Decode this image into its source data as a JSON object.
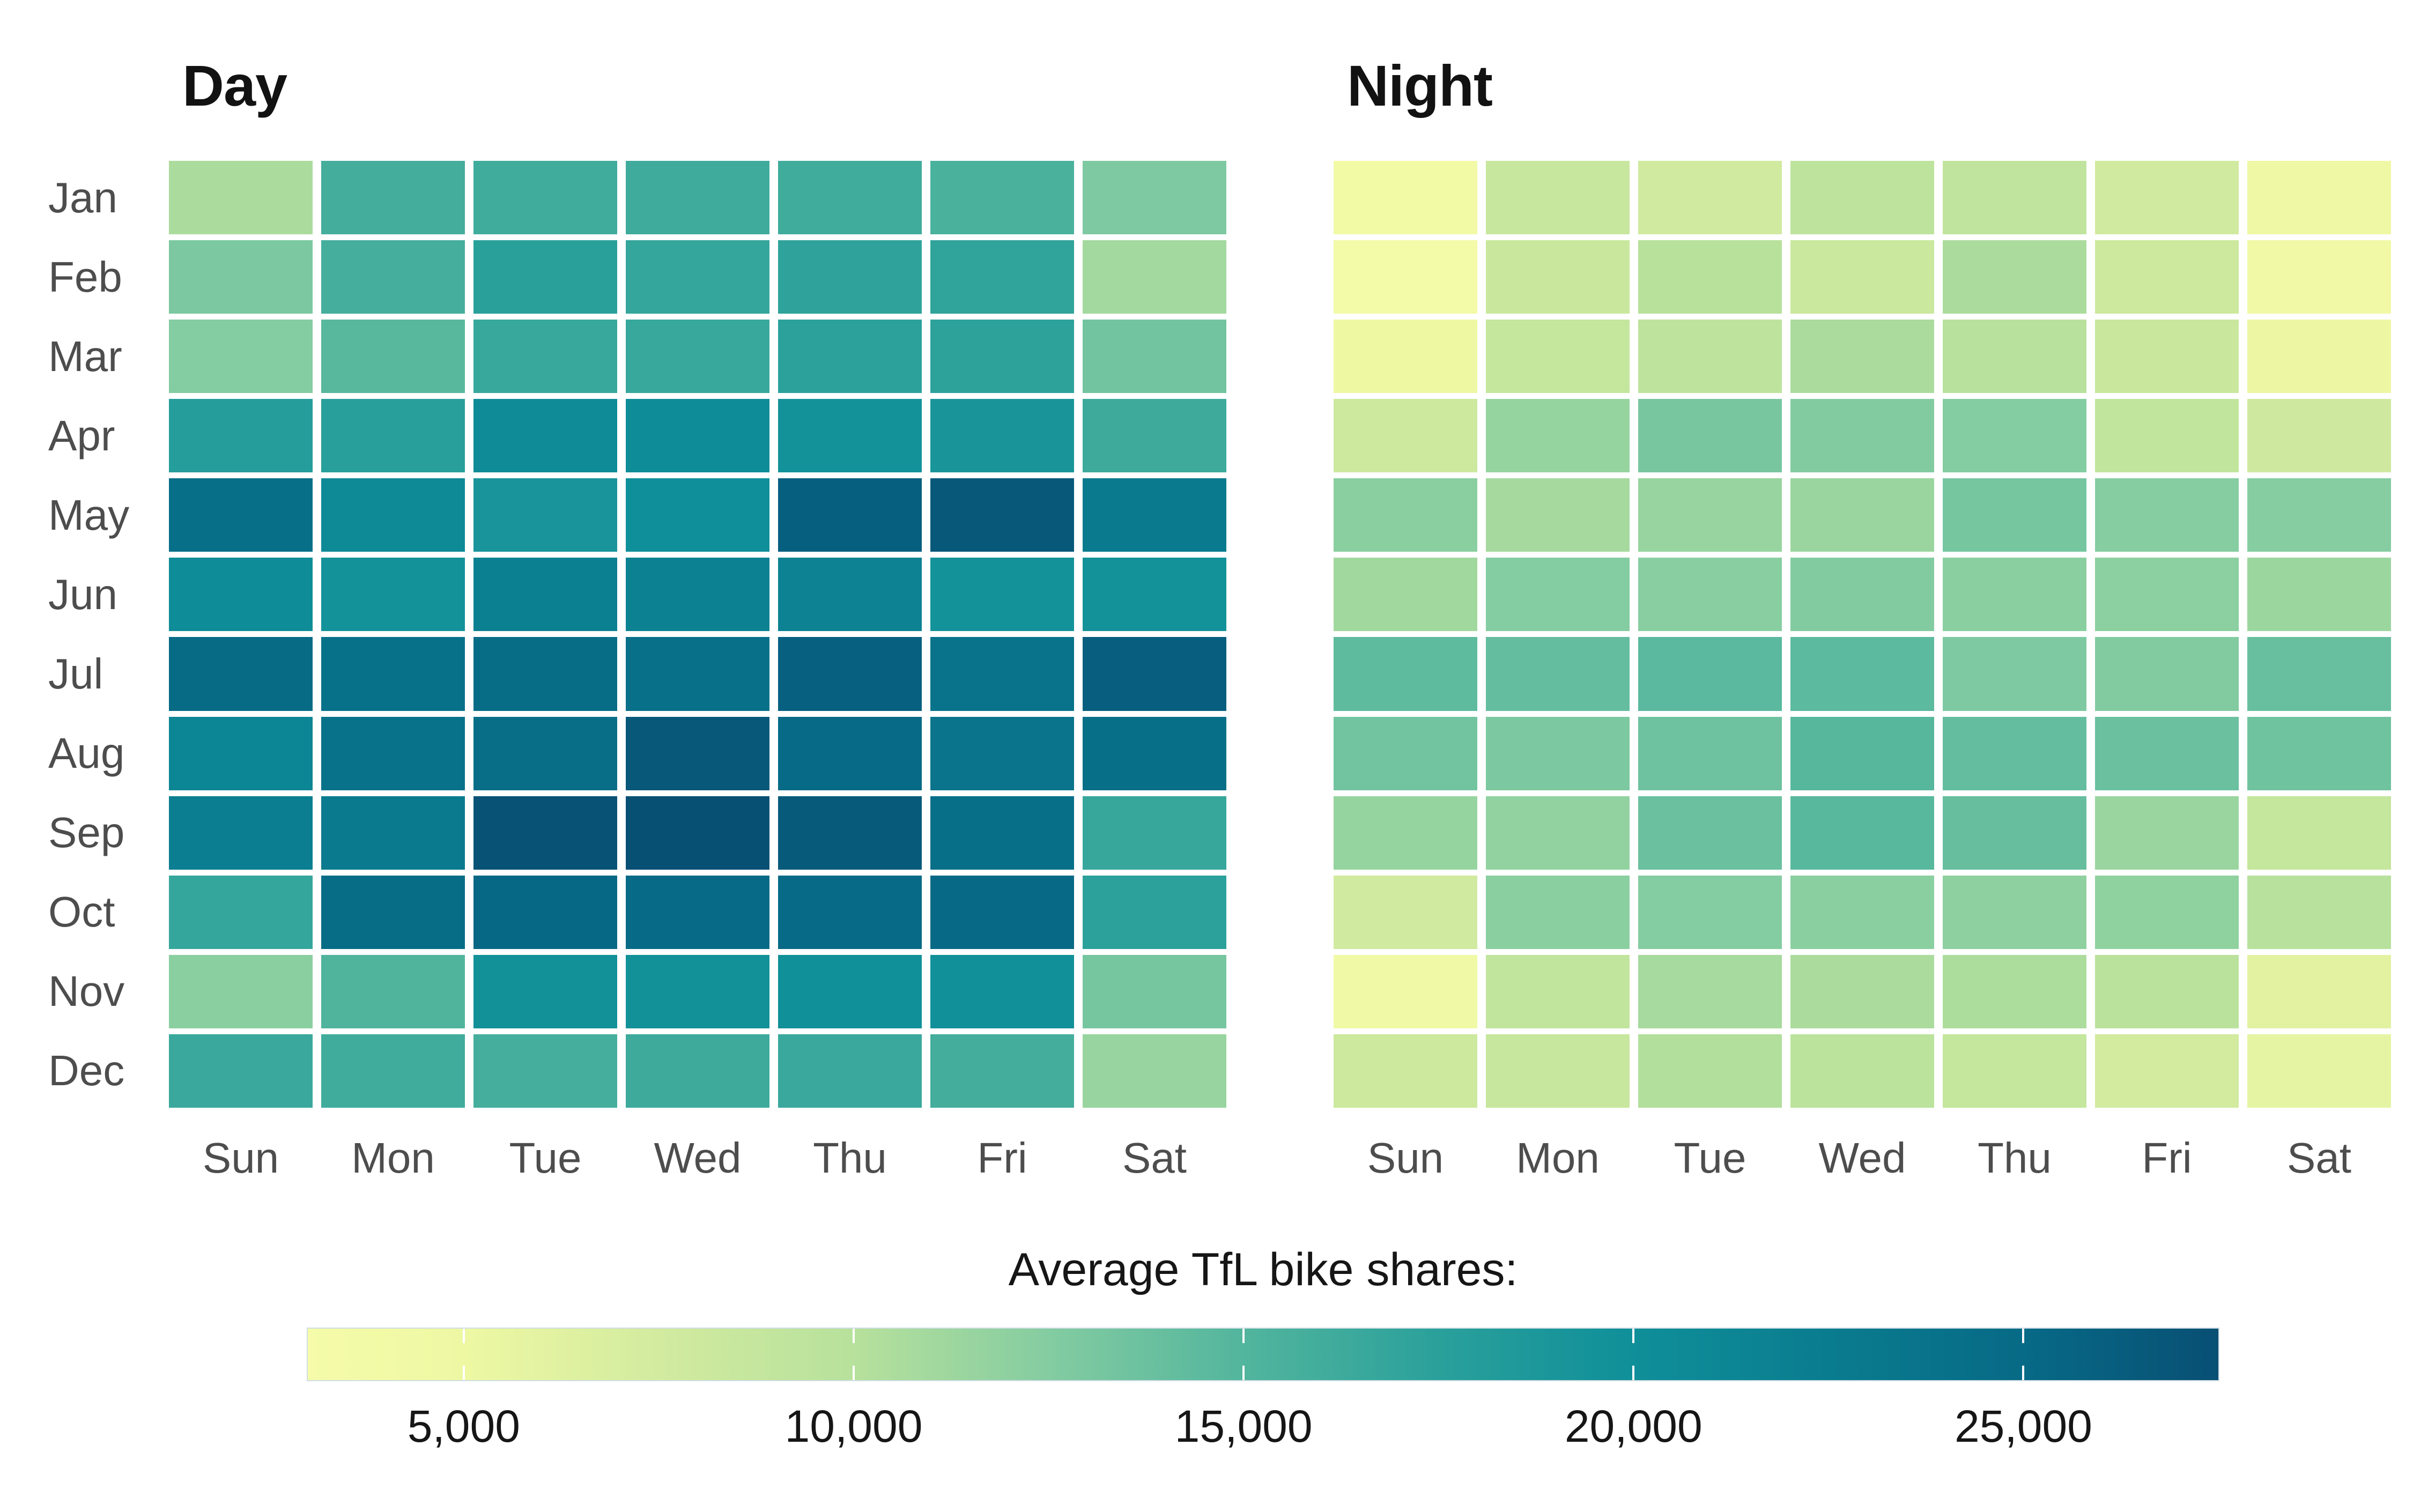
{
  "chart_data": {
    "type": "heatmap",
    "months": [
      "Jan",
      "Feb",
      "Mar",
      "Apr",
      "May",
      "Jun",
      "Jul",
      "Aug",
      "Sep",
      "Oct",
      "Nov",
      "Dec"
    ],
    "weekdays": [
      "Sun",
      "Mon",
      "Tue",
      "Wed",
      "Thu",
      "Fri",
      "Sat"
    ],
    "panels": [
      {
        "title": "Day",
        "values": [
          [
            10600,
            15900,
            16100,
            16200,
            16100,
            15500,
            12800
          ],
          [
            12900,
            15800,
            17500,
            16800,
            17200,
            17100,
            11000
          ],
          [
            12500,
            14700,
            16600,
            16600,
            17400,
            17300,
            13400
          ],
          [
            18000,
            17700,
            20500,
            20400,
            19600,
            19100,
            16300
          ],
          [
            24300,
            20700,
            19200,
            20000,
            26000,
            26700,
            22600
          ],
          [
            20300,
            19600,
            22000,
            21800,
            21700,
            19500,
            19500
          ],
          [
            24900,
            24000,
            24600,
            24200,
            25900,
            23800,
            26100
          ],
          [
            21300,
            23900,
            24400,
            26700,
            25000,
            23600,
            24300
          ],
          [
            22100,
            22600,
            27200,
            27500,
            26500,
            24300,
            16700
          ],
          [
            16800,
            24600,
            25200,
            24800,
            25000,
            25100,
            17400
          ],
          [
            12200,
            15100,
            19700,
            19700,
            19900,
            19800,
            13200
          ],
          [
            16500,
            16100,
            15800,
            16300,
            16500,
            15900,
            11500
          ]
        ]
      },
      {
        "title": "Night",
        "values": [
          [
            4000,
            8500,
            7700,
            9400,
            9200,
            7700,
            4700
          ],
          [
            3500,
            8300,
            9900,
            8200,
            10600,
            8100,
            4100
          ],
          [
            5000,
            8800,
            9400,
            10600,
            10000,
            8300,
            5100
          ],
          [
            8100,
            11600,
            13100,
            12600,
            12500,
            9100,
            7900
          ],
          [
            12200,
            10900,
            11500,
            11400,
            13200,
            12400,
            12400
          ],
          [
            11100,
            12500,
            12300,
            12600,
            12200,
            12100,
            11300
          ],
          [
            14400,
            14100,
            14600,
            14500,
            12800,
            12600,
            13900
          ],
          [
            13400,
            12900,
            13600,
            14800,
            14100,
            13800,
            13500
          ],
          [
            11600,
            11800,
            13800,
            14700,
            14000,
            11400,
            8800
          ],
          [
            7700,
            12200,
            12500,
            12200,
            12000,
            11900,
            10000
          ],
          [
            4500,
            9100,
            10800,
            10600,
            10500,
            9700,
            6100
          ],
          [
            8100,
            8500,
            10200,
            9600,
            8800,
            7500,
            5800
          ]
        ]
      }
    ],
    "legend": {
      "title": "Average TfL bike shares:",
      "tick_values": [
        5000,
        10000,
        15000,
        20000,
        25000
      ],
      "tick_labels": [
        "5,000",
        "10,000",
        "15,000",
        "20,000",
        "25,000"
      ],
      "domain": [
        3000,
        27500
      ],
      "gradient_stops": [
        {
          "value": 3000,
          "color": "#f5fba9"
        },
        {
          "value": 5000,
          "color": "#eef8a3"
        },
        {
          "value": 7500,
          "color": "#d2eb9f"
        },
        {
          "value": 10000,
          "color": "#b7e19c"
        },
        {
          "value": 12500,
          "color": "#84cca1"
        },
        {
          "value": 15000,
          "color": "#52b59d"
        },
        {
          "value": 17500,
          "color": "#2aa09b"
        },
        {
          "value": 20000,
          "color": "#0f8f99"
        },
        {
          "value": 22500,
          "color": "#0a7c8f"
        },
        {
          "value": 25000,
          "color": "#076a86"
        },
        {
          "value": 27500,
          "color": "#084f74"
        }
      ]
    },
    "colors": {
      "axis_label_gray": "#4d4d4d",
      "title_black": "#161616",
      "background": "#ffffff"
    },
    "layout_hints": {
      "grid": "off",
      "legend_position": "bottom"
    }
  }
}
